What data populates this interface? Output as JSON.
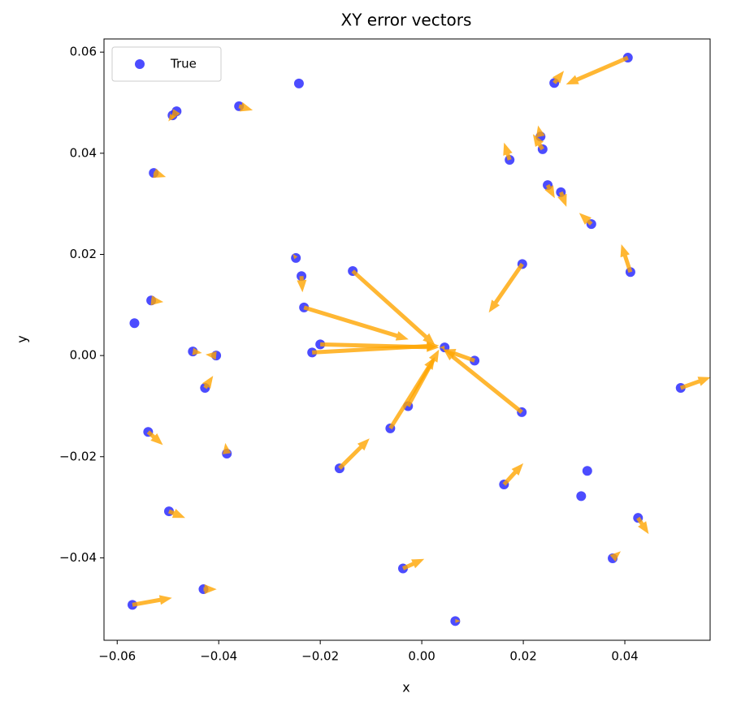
{
  "chart_data": {
    "type": "quiver",
    "title": "XY error vectors",
    "xlabel": "x",
    "ylabel": "y",
    "series": [
      {
        "name": "True",
        "color": "blue",
        "x": [
          0.0406,
          0.0261,
          -0.0242,
          -0.0483,
          -0.0491,
          -0.036,
          -0.0528,
          0.0173,
          0.0234,
          0.0238,
          0.0248,
          0.0274,
          0.0334,
          0.0411,
          -0.0248,
          -0.0237,
          -0.0136,
          0.0198,
          -0.0533,
          -0.0566,
          -0.0232,
          -0.0451,
          -0.0405,
          -0.02,
          -0.0216,
          0.0045,
          0.0104,
          0.0197,
          -0.0427,
          0.051,
          -0.0027,
          -0.0062,
          -0.0539,
          -0.0384,
          -0.0162,
          0.0162,
          0.0326,
          0.0314,
          -0.0498,
          0.0426,
          0.0376,
          -0.0037,
          -0.043,
          -0.057,
          0.0066
        ],
        "y": [
          0.0589,
          0.0539,
          0.0538,
          0.0483,
          0.0475,
          0.0493,
          0.0361,
          0.0387,
          0.0433,
          0.0408,
          0.0337,
          0.0323,
          0.026,
          0.0165,
          0.0193,
          0.0157,
          0.0167,
          0.0181,
          0.0109,
          0.0064,
          0.0095,
          0.0008,
          0.0,
          0.0022,
          0.0006,
          0.0016,
          -0.001,
          -0.0112,
          -0.0064,
          -0.0064,
          -0.01,
          -0.0144,
          -0.0151,
          -0.0194,
          -0.0223,
          -0.0255,
          -0.0228,
          -0.0278,
          -0.0308,
          -0.0321,
          -0.0401,
          -0.0421,
          -0.0462,
          -0.0493,
          -0.0525
        ]
      }
    ],
    "vectors": {
      "color": "orange",
      "u": [
        -0.0122,
        0.0019,
        0.0,
        -0.0011,
        -0.0008,
        0.0027,
        0.0024,
        -0.0011,
        -0.0005,
        -0.0019,
        0.0014,
        0.0011,
        -0.0024,
        -0.0018,
        -0.0006,
        0.0002,
        0.0162,
        -0.0066,
        0.0024,
        0.0,
        0.0206,
        0.0018,
        -0.0021,
        0.0234,
        0.025,
        -0.001,
        -0.0062,
        -0.0155,
        0.0016,
        0.0059,
        0.0061,
        0.0088,
        0.0029,
        -0.0003,
        0.0059,
        0.0038,
        0.0,
        0.0,
        0.0032,
        0.0021,
        0.0016,
        0.0042,
        0.0026,
        0.0078,
        0.001
      ],
      "v": [
        -0.0053,
        0.0024,
        0.0,
        -0.0018,
        -0.0012,
        -0.0008,
        -0.0008,
        0.0034,
        0.0022,
        0.003,
        -0.0026,
        -0.0029,
        0.0022,
        0.0055,
        0.0008,
        -0.0032,
        -0.0146,
        -0.0096,
        -0.0003,
        0.0,
        -0.0063,
        -0.0003,
        0.0002,
        -0.0006,
        0.0014,
        0.0,
        0.0022,
        0.0125,
        0.0024,
        0.0021,
        0.0112,
        0.0141,
        -0.0026,
        0.0021,
        0.0059,
        0.0042,
        0.0,
        0.0,
        -0.0013,
        -0.0032,
        0.0014,
        0.0019,
        0.0,
        0.0014,
        0.0
      ]
    },
    "legend": "upper left",
    "xlim": [
      -0.0626,
      0.0568
    ],
    "ylim": [
      -0.0563,
      0.0626
    ],
    "xticks": [
      {
        "value": -0.06,
        "label": "−0.06"
      },
      {
        "value": -0.04,
        "label": "−0.04"
      },
      {
        "value": -0.02,
        "label": "−0.02"
      },
      {
        "value": 0,
        "label": "0.00"
      },
      {
        "value": 0.02,
        "label": "0.02"
      },
      {
        "value": 0.04,
        "label": "0.04"
      }
    ],
    "yticks": [
      {
        "value": -0.04,
        "label": "−0.04"
      },
      {
        "value": -0.02,
        "label": "−0.02"
      },
      {
        "value": 0,
        "label": "0.00"
      },
      {
        "value": 0.02,
        "label": "0.02"
      },
      {
        "value": 0.04,
        "label": "0.04"
      },
      {
        "value": 0.06,
        "label": "0.06"
      }
    ]
  }
}
